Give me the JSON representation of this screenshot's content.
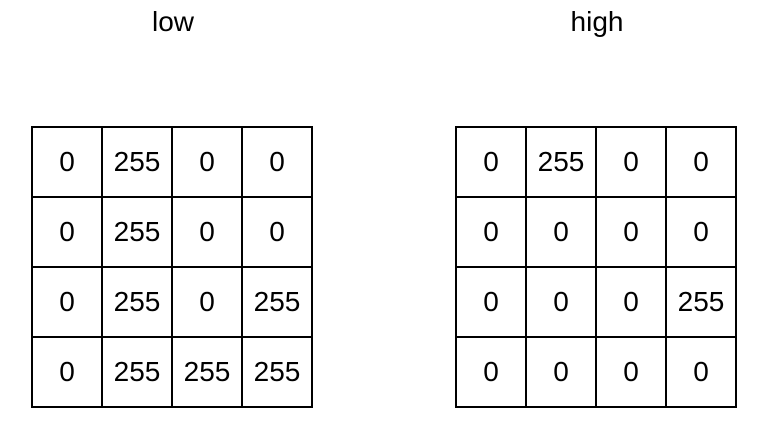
{
  "panels": [
    {
      "title": "low",
      "cells": [
        [
          "0",
          "255",
          "0",
          "0"
        ],
        [
          "0",
          "255",
          "0",
          "0"
        ],
        [
          "0",
          "255",
          "0",
          "255"
        ],
        [
          "0",
          "255",
          "255",
          "255"
        ]
      ]
    },
    {
      "title": "high",
      "cells": [
        [
          "0",
          "255",
          "0",
          "0"
        ],
        [
          "0",
          "0",
          "0",
          "0"
        ],
        [
          "0",
          "0",
          "0",
          "255"
        ],
        [
          "0",
          "0",
          "0",
          "0"
        ]
      ]
    }
  ]
}
